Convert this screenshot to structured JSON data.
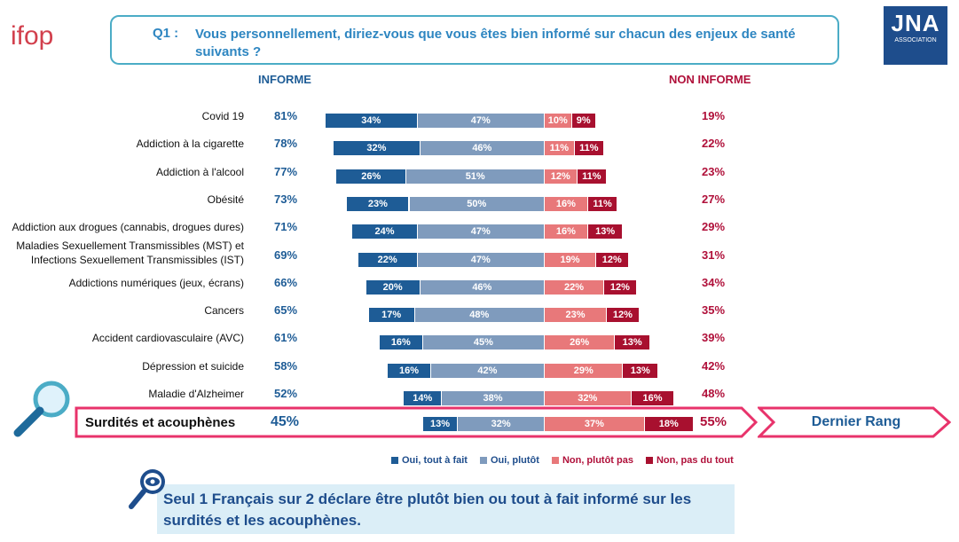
{
  "header": {
    "brand_left": "ifop",
    "brand_right": "JNA",
    "brand_right_sub": "ASSOCIATION",
    "question_prefix": "Q1 :",
    "question": "Vous personnellement, diriez-vous que vous êtes bien informé sur chacun des enjeux de santé suivants ?"
  },
  "columns": {
    "left": "INFORME",
    "right": "NON INFORME"
  },
  "colors": {
    "oui_tout_a_fait": "#1e5c96",
    "oui_plutot": "#7f9bbd",
    "non_plutot_pas": "#e8787a",
    "non_pas_du_tout": "#a8102f",
    "highlight": "#e8336b"
  },
  "chart_data": {
    "type": "bar",
    "orientation": "horizontal-diverging",
    "series_names": [
      "Oui, tout à fait",
      "Oui, plutôt",
      "Non, plutôt pas",
      "Non, pas du tout"
    ],
    "rows": [
      {
        "label": "Covid 19",
        "informe": "81%",
        "non_informe": "19%",
        "values": [
          34,
          47,
          10,
          9
        ]
      },
      {
        "label": "Addiction à la cigarette",
        "informe": "78%",
        "non_informe": "22%",
        "values": [
          32,
          46,
          11,
          11
        ]
      },
      {
        "label": "Addiction à l'alcool",
        "informe": "77%",
        "non_informe": "23%",
        "values": [
          26,
          51,
          12,
          11
        ]
      },
      {
        "label": "Obésité",
        "informe": "73%",
        "non_informe": "27%",
        "values": [
          23,
          50,
          16,
          11
        ]
      },
      {
        "label": "Addiction aux drogues (cannabis, drogues dures)",
        "informe": "71%",
        "non_informe": "29%",
        "values": [
          24,
          47,
          16,
          13
        ]
      },
      {
        "label": "Maladies Sexuellement Transmissibles (MST) et",
        "label2": "Infections Sexuellement Transmissibles (IST)",
        "informe": "69%",
        "non_informe": "31%",
        "values": [
          22,
          47,
          19,
          12
        ]
      },
      {
        "label": "Addictions numériques (jeux, écrans)",
        "informe": "66%",
        "non_informe": "34%",
        "values": [
          20,
          46,
          22,
          12
        ]
      },
      {
        "label": "Cancers",
        "informe": "65%",
        "non_informe": "35%",
        "values": [
          17,
          48,
          23,
          12
        ]
      },
      {
        "label": "Accident cardiovasculaire (AVC)",
        "informe": "61%",
        "non_informe": "39%",
        "values": [
          16,
          45,
          26,
          13
        ]
      },
      {
        "label": "Dépression et suicide",
        "informe": "58%",
        "non_informe": "42%",
        "values": [
          16,
          42,
          29,
          13
        ]
      },
      {
        "label": "Maladie d'Alzheimer",
        "informe": "52%",
        "non_informe": "48%",
        "values": [
          14,
          38,
          32,
          16
        ]
      }
    ],
    "highlight_row": {
      "label": "Surdités et acouphènes",
      "informe": "45%",
      "non_informe": "55%",
      "values": [
        13,
        32,
        37,
        18
      ]
    }
  },
  "rank_label": "Dernier Rang",
  "legend": [
    {
      "label": "Oui, tout à fait",
      "color": "#1e5c96"
    },
    {
      "label": "Oui, plutôt",
      "color": "#7f9bbd"
    },
    {
      "label": "Non, plutôt pas",
      "color": "#e8787a"
    },
    {
      "label": "Non, pas du tout",
      "color": "#a8102f"
    }
  ],
  "conclusion": "Seul 1 Français sur 2 déclare être plutôt bien ou tout à fait informé sur les surdités et les acouphènes."
}
